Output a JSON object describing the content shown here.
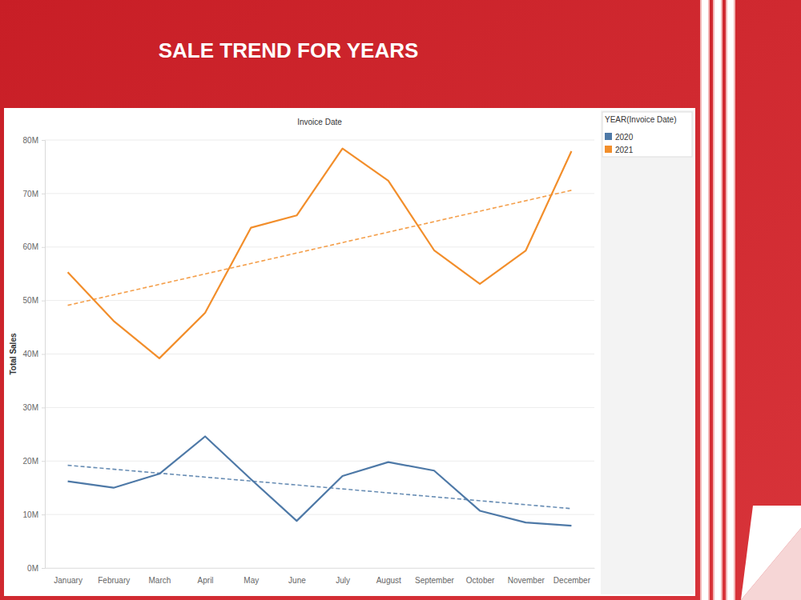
{
  "chart_data": {
    "type": "line",
    "title": "SALE TREND FOR YEARS",
    "x_label": "Invoice Date",
    "y_label": "Total Sales",
    "legend_title": "YEAR(Invoice Date)",
    "categories": [
      "January",
      "February",
      "March",
      "April",
      "May",
      "June",
      "July",
      "August",
      "September",
      "October",
      "November",
      "December"
    ],
    "series": [
      {
        "name": "2020",
        "color": "#4e79a7",
        "values": [
          16.2,
          15.0,
          17.6,
          24.6,
          16.6,
          8.8,
          17.2,
          19.8,
          18.2,
          10.7,
          8.5,
          7.9
        ],
        "trend": [
          19.2,
          11.1
        ]
      },
      {
        "name": "2021",
        "color": "#f28e2b",
        "values": [
          55.3,
          46.2,
          39.2,
          47.7,
          63.6,
          65.9,
          78.4,
          72.4,
          59.4,
          53.1,
          59.3,
          77.9
        ],
        "trend": [
          49.1,
          70.6
        ]
      }
    ],
    "ylim": [
      0,
      80
    ],
    "yticks": [
      {
        "value": 0,
        "label": "0M"
      },
      {
        "value": 10,
        "label": "10M"
      },
      {
        "value": 20,
        "label": "20M"
      },
      {
        "value": 30,
        "label": "30M"
      },
      {
        "value": 40,
        "label": "40M"
      },
      {
        "value": 50,
        "label": "50M"
      },
      {
        "value": 60,
        "label": "60M"
      },
      {
        "value": 70,
        "label": "70M"
      },
      {
        "value": 80,
        "label": "80M"
      }
    ],
    "grid": true,
    "legend": "right"
  }
}
